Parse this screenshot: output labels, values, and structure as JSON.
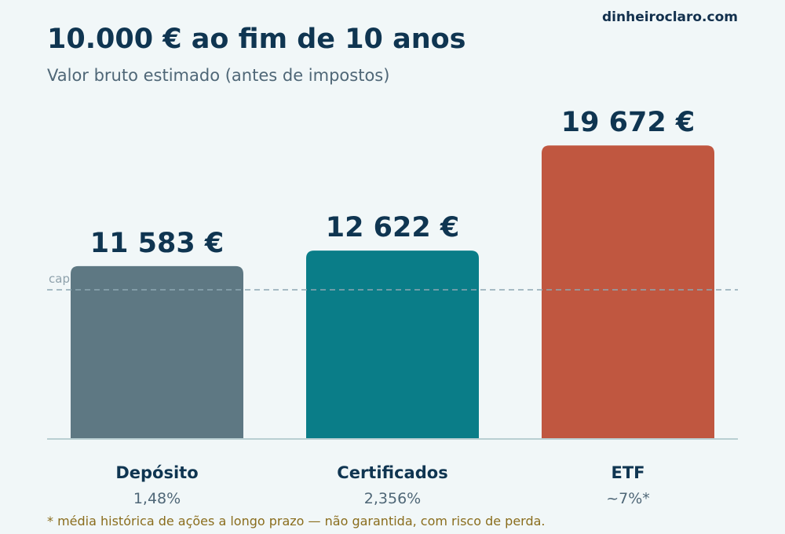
{
  "brand": "dinheiroclaro.com",
  "footnote": "* média histórica de ações a longo prazo — não garantida, com risco de perda.",
  "chart_data": {
    "type": "bar",
    "title": "10.000 € ao fim de 10 anos",
    "subtitle": "Valor bruto estimado (antes de impostos)",
    "categories": [
      "Depósito",
      "Certificados",
      "ETF"
    ],
    "rates": [
      "1,48%",
      "2,356%",
      "~7%*"
    ],
    "values": [
      11583,
      12622,
      19672
    ],
    "value_labels": [
      "11 583 €",
      "12 622 €",
      "19 672 €"
    ],
    "colors": [
      "#5e7883",
      "#0a7d88",
      "#c05740"
    ],
    "ylim": [
      0,
      21000
    ],
    "reference_line": {
      "value": 10000,
      "label": "cap"
    },
    "grid": false,
    "legend": "none"
  }
}
